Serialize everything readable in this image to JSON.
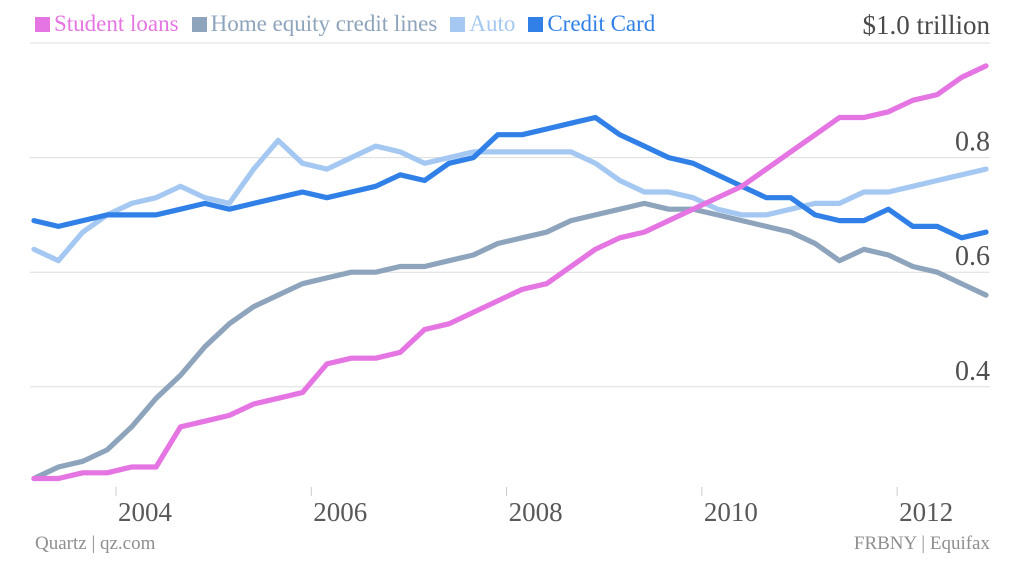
{
  "y_axis": {
    "unit_label": "$1.0 trillion",
    "tick_labels": [
      {
        "value": 0.8,
        "label": "0.8"
      },
      {
        "value": 0.6,
        "label": "0.6"
      },
      {
        "value": 0.4,
        "label": "0.4"
      }
    ]
  },
  "x_axis": {
    "tick_years": [
      2004,
      2006,
      2008,
      2010,
      2012
    ]
  },
  "footer": {
    "left": "Quartz | qz.com",
    "right": "FRBNY | Equifax"
  },
  "chart_data": {
    "type": "line",
    "title": "",
    "unit": "trillions of USD",
    "frequency": "quarterly",
    "x_start": "2003Q1",
    "x_end": "2012Q4",
    "ylim": [
      0.2,
      1.0
    ],
    "y_gridlines": [
      1.0,
      0.8,
      0.6,
      0.4
    ],
    "x_tick_years": [
      2004,
      2006,
      2008,
      2010,
      2012
    ],
    "legend_position": "top",
    "grid": "horizontal-only",
    "series": [
      {
        "name": "Student loans",
        "color": "#e475e2",
        "values": [
          0.24,
          0.24,
          0.25,
          0.25,
          0.26,
          0.26,
          0.33,
          0.34,
          0.35,
          0.37,
          0.38,
          0.39,
          0.44,
          0.45,
          0.45,
          0.46,
          0.5,
          0.51,
          0.53,
          0.55,
          0.57,
          0.58,
          0.61,
          0.64,
          0.66,
          0.67,
          0.69,
          0.71,
          0.73,
          0.75,
          0.78,
          0.81,
          0.84,
          0.87,
          0.87,
          0.88,
          0.9,
          0.91,
          0.94,
          0.96
        ]
      },
      {
        "name": "Home equity credit lines",
        "color": "#8da4bc",
        "values": [
          0.24,
          0.26,
          0.27,
          0.29,
          0.33,
          0.38,
          0.42,
          0.47,
          0.51,
          0.54,
          0.56,
          0.58,
          0.59,
          0.6,
          0.6,
          0.61,
          0.61,
          0.62,
          0.63,
          0.65,
          0.66,
          0.67,
          0.69,
          0.7,
          0.71,
          0.72,
          0.71,
          0.71,
          0.7,
          0.69,
          0.68,
          0.67,
          0.65,
          0.62,
          0.64,
          0.63,
          0.61,
          0.6,
          0.58,
          0.56
        ]
      },
      {
        "name": "Auto",
        "color": "#a4c8f1",
        "values": [
          0.64,
          0.62,
          0.67,
          0.7,
          0.72,
          0.73,
          0.75,
          0.73,
          0.72,
          0.78,
          0.83,
          0.79,
          0.78,
          0.8,
          0.82,
          0.81,
          0.79,
          0.8,
          0.81,
          0.81,
          0.81,
          0.81,
          0.81,
          0.79,
          0.76,
          0.74,
          0.74,
          0.73,
          0.71,
          0.7,
          0.7,
          0.71,
          0.72,
          0.72,
          0.74,
          0.74,
          0.75,
          0.76,
          0.77,
          0.78
        ]
      },
      {
        "name": "Credit Card",
        "color": "#3080e8",
        "values": [
          0.69,
          0.68,
          0.69,
          0.7,
          0.7,
          0.7,
          0.71,
          0.72,
          0.71,
          0.72,
          0.73,
          0.74,
          0.73,
          0.74,
          0.75,
          0.77,
          0.76,
          0.79,
          0.8,
          0.84,
          0.84,
          0.85,
          0.86,
          0.87,
          0.84,
          0.82,
          0.8,
          0.79,
          0.77,
          0.75,
          0.73,
          0.73,
          0.7,
          0.69,
          0.69,
          0.71,
          0.68,
          0.68,
          0.66,
          0.67
        ]
      }
    ]
  }
}
